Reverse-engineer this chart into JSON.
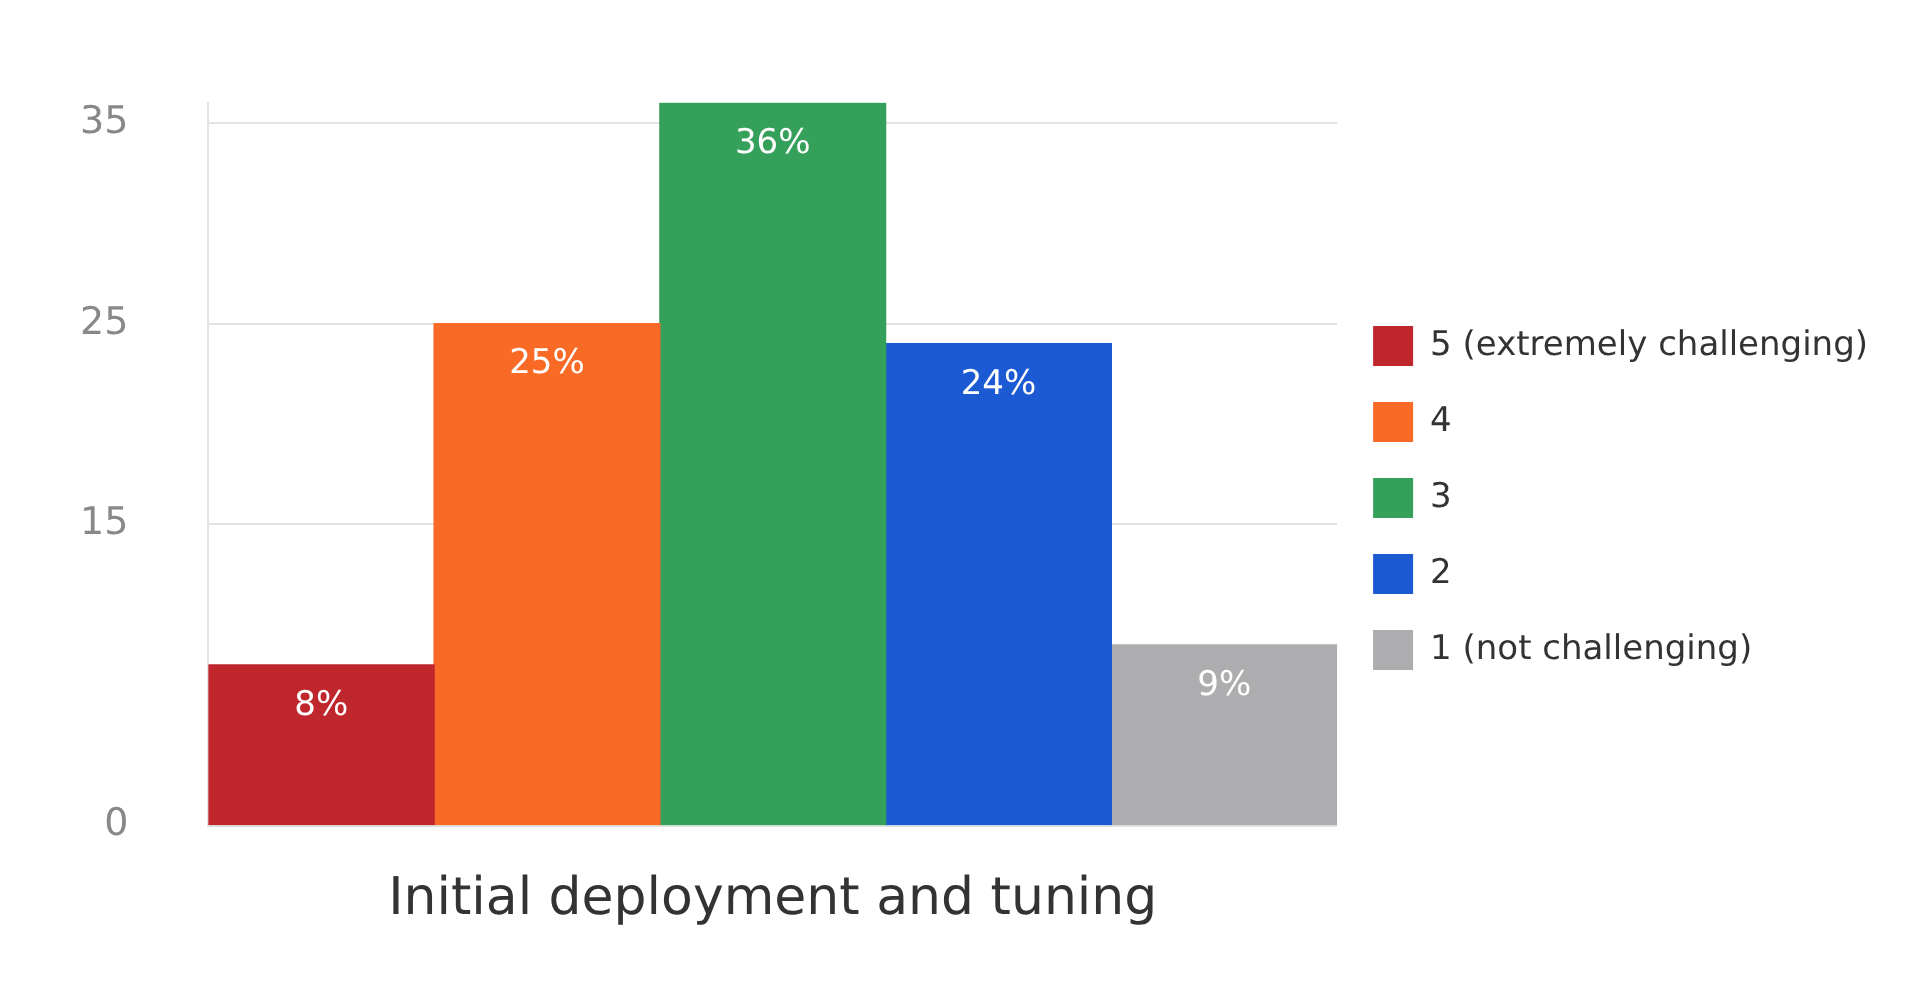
{
  "chart_data": {
    "type": "bar",
    "categories": [
      "Initial deployment and tuning"
    ],
    "series": [
      {
        "name": "5 (extremely challenging)",
        "color": "#c0272d",
        "values": [
          8
        ]
      },
      {
        "name": "4",
        "color": "#f96a27",
        "values": [
          25
        ]
      },
      {
        "name": "3",
        "color": "#35a05a",
        "values": [
          36
        ]
      },
      {
        "name": "2",
        "color": "#1c5ad4",
        "values": [
          24
        ]
      },
      {
        "name": "1 (not challenging)",
        "color": "#adadaf",
        "values": [
          9
        ]
      }
    ],
    "value_labels": [
      "8%",
      "25%",
      "36%",
      "24%",
      "9%"
    ],
    "ylim": [
      0,
      36
    ],
    "yticks": [
      0,
      15,
      25,
      35
    ],
    "grid": "y",
    "legend": "right"
  }
}
